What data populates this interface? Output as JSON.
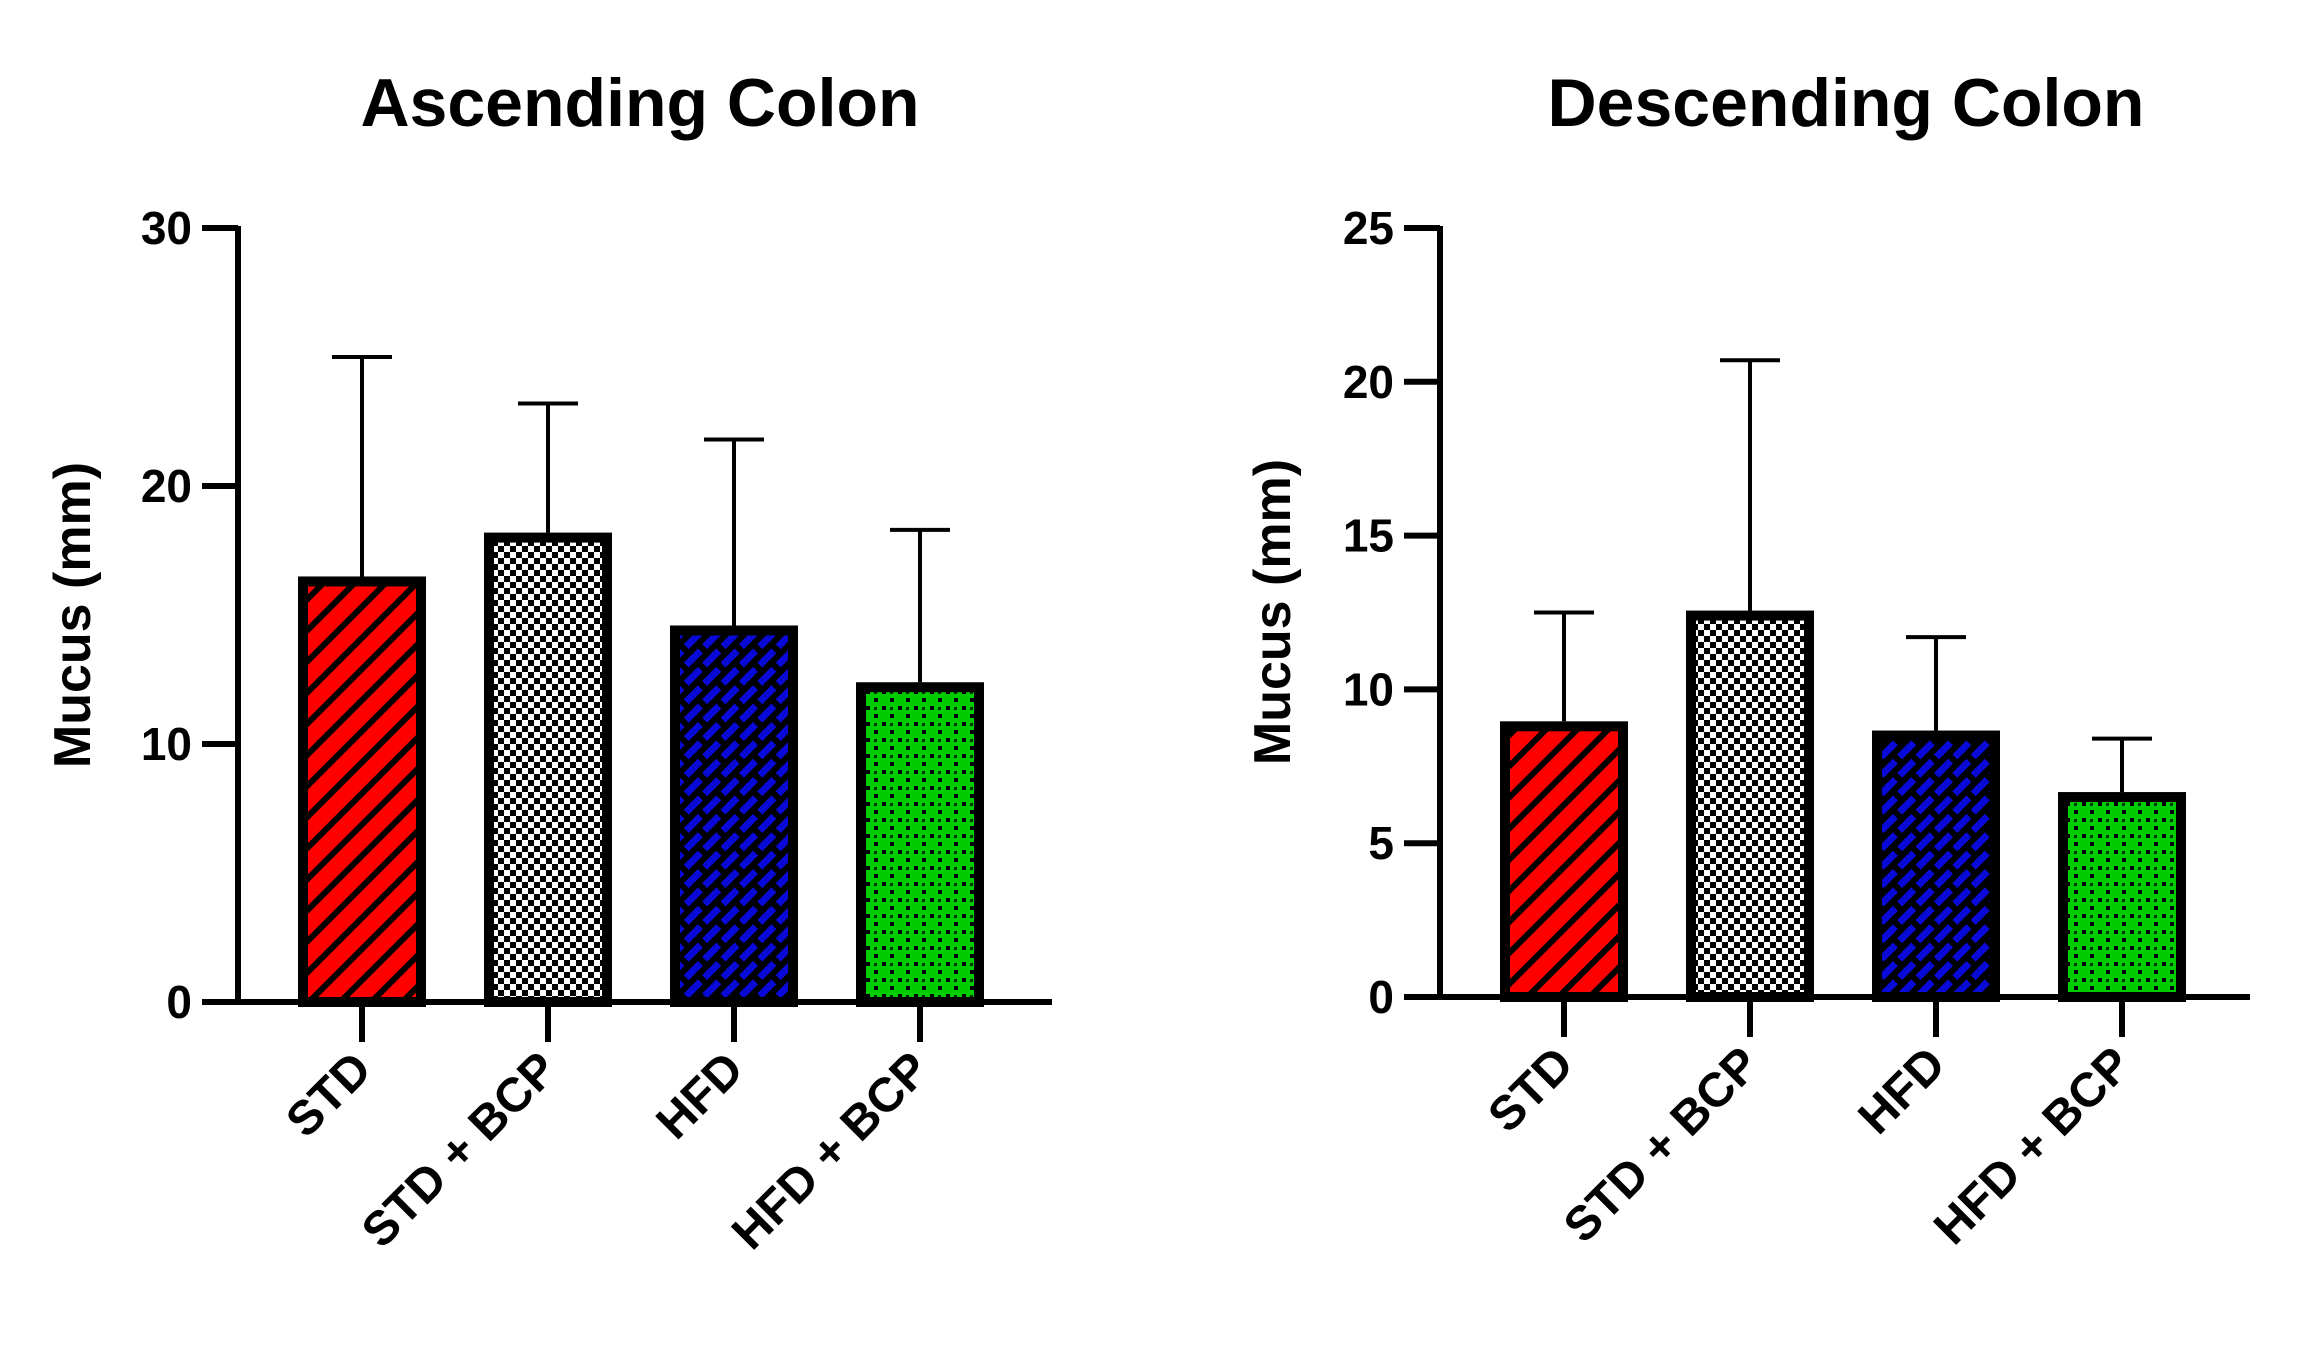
{
  "chart_data": [
    {
      "type": "bar",
      "title": "Ascending Colon",
      "xlabel": "",
      "ylabel": "Mucus (mm)",
      "ylim": [
        0,
        30
      ],
      "yticks": [
        0,
        10,
        20,
        30
      ],
      "categories": [
        "STD",
        "STD + BCP",
        "HFD",
        "HFD + BCP"
      ],
      "values": [
        16.3,
        18.0,
        14.4,
        12.2
      ],
      "error_upper": [
        25.0,
        23.2,
        21.8,
        18.3
      ],
      "fill_colors": [
        "#ff0000",
        "#ffffff",
        "#0000cc",
        "#00cc00"
      ],
      "patterns": [
        "diagonal-stripes",
        "checker",
        "brick",
        "dots"
      ]
    },
    {
      "type": "bar",
      "title": "Descending Colon",
      "xlabel": "",
      "ylabel": "Mucus (mm)",
      "ylim": [
        0,
        25
      ],
      "yticks": [
        0,
        5,
        10,
        15,
        20,
        25
      ],
      "categories": [
        "STD",
        "STD + BCP",
        "HFD",
        "HFD + BCP"
      ],
      "values": [
        8.8,
        12.4,
        8.5,
        6.5
      ],
      "error_upper": [
        12.5,
        20.7,
        11.7,
        8.4
      ],
      "fill_colors": [
        "#ff0000",
        "#ffffff",
        "#0000cc",
        "#00cc00"
      ],
      "patterns": [
        "diagonal-stripes",
        "checker",
        "brick",
        "dots"
      ]
    }
  ]
}
